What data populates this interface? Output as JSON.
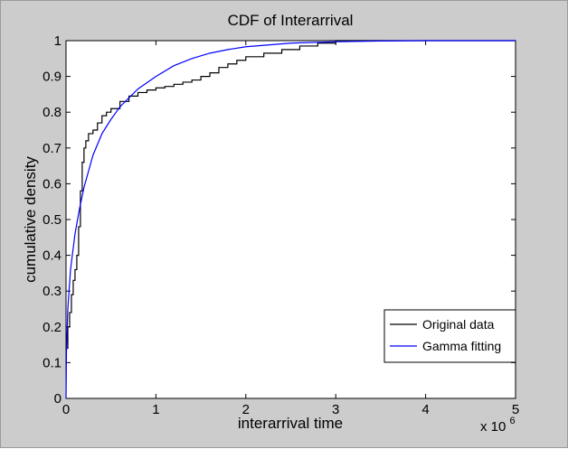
{
  "chart_data": {
    "type": "line",
    "title": "CDF of Interarrival",
    "xlabel": "interarrival time",
    "ylabel": "cumulative density",
    "x_multiplier": "x 10",
    "x_multiplier_exp": "6",
    "xlim": [
      0,
      5
    ],
    "ylim": [
      0,
      1
    ],
    "xticks": [
      "0",
      "1",
      "2",
      "3",
      "4",
      "5"
    ],
    "yticks": [
      "0",
      "0.1",
      "0.2",
      "0.3",
      "0.4",
      "0.5",
      "0.6",
      "0.7",
      "0.8",
      "0.9",
      "1"
    ],
    "grid": false,
    "legend_position": "bottom-right",
    "series": [
      {
        "name": "Original data",
        "color": "#000000",
        "step": true,
        "x": [
          0,
          0.02,
          0.04,
          0.06,
          0.08,
          0.1,
          0.12,
          0.14,
          0.16,
          0.18,
          0.2,
          0.22,
          0.25,
          0.3,
          0.35,
          0.4,
          0.45,
          0.5,
          0.6,
          0.7,
          0.8,
          0.9,
          1.0,
          1.1,
          1.2,
          1.3,
          1.4,
          1.5,
          1.6,
          1.7,
          1.8,
          1.9,
          2.0,
          2.2,
          2.4,
          2.6,
          2.8,
          3.0
        ],
        "y": [
          0.14,
          0.2,
          0.24,
          0.29,
          0.33,
          0.36,
          0.4,
          0.48,
          0.58,
          0.66,
          0.7,
          0.72,
          0.74,
          0.75,
          0.77,
          0.79,
          0.8,
          0.81,
          0.83,
          0.845,
          0.855,
          0.862,
          0.868,
          0.872,
          0.878,
          0.884,
          0.89,
          0.9,
          0.91,
          0.925,
          0.935,
          0.945,
          0.955,
          0.965,
          0.975,
          0.985,
          0.993,
          1.0
        ]
      },
      {
        "name": "Gamma fitting",
        "color": "#0000ff",
        "step": false,
        "x": [
          0,
          0.005,
          0.02,
          0.05,
          0.1,
          0.15,
          0.2,
          0.3,
          0.4,
          0.5,
          0.6,
          0.7,
          0.8,
          1.0,
          1.2,
          1.4,
          1.6,
          1.8,
          2.0,
          2.5,
          3.0,
          3.5,
          4.0,
          5.0
        ],
        "y": [
          0,
          0.13,
          0.25,
          0.36,
          0.46,
          0.53,
          0.59,
          0.68,
          0.74,
          0.78,
          0.815,
          0.84,
          0.865,
          0.9,
          0.93,
          0.95,
          0.965,
          0.975,
          0.983,
          0.993,
          0.997,
          0.999,
          1.0,
          1.0
        ]
      }
    ]
  }
}
